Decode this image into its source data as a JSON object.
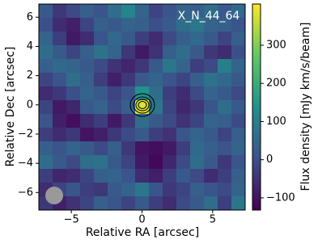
{
  "chart_data": {
    "type": "image",
    "title": "X_N_44_64",
    "xlabel": "Relative RA [arcsec]",
    "ylabel": "Relative Dec [arcsec]",
    "colorbar_label": "Flux density [mJy km/s/beam]",
    "colormap": "viridis",
    "xlim": [
      -7.3,
      7.3
    ],
    "ylim": [
      -7.2,
      6.9
    ],
    "xticks": [
      {
        "value": -5,
        "label": "−5"
      },
      0,
      5
    ],
    "yticks": [
      {
        "value": -6,
        "label": "−6"
      },
      {
        "value": -4,
        "label": "−4"
      },
      {
        "value": -2,
        "label": "−2"
      },
      0,
      2,
      4,
      6
    ],
    "clim": [
      -132,
      408
    ],
    "cticks": [
      {
        "value": -100,
        "label": "−100"
      },
      0,
      100,
      200,
      300
    ],
    "z": [
      [
        20,
        -40,
        -10,
        30,
        10,
        60,
        110,
        40,
        -20,
        10,
        40,
        30,
        60,
        20,
        50
      ],
      [
        0,
        -60,
        -80,
        -20,
        30,
        20,
        40,
        30,
        0,
        20,
        60,
        80,
        40,
        30,
        10
      ],
      [
        40,
        -30,
        -90,
        -60,
        10,
        50,
        20,
        -30,
        -60,
        -10,
        30,
        50,
        20,
        -20,
        30
      ],
      [
        60,
        20,
        -20,
        30,
        70,
        40,
        -40,
        -90,
        -50,
        30,
        60,
        20,
        -40,
        -60,
        0
      ],
      [
        30,
        50,
        40,
        20,
        -10,
        -50,
        -70,
        -40,
        20,
        80,
        40,
        -30,
        -10,
        100,
        40
      ],
      [
        -20,
        10,
        60,
        30,
        -30,
        -80,
        -40,
        20,
        40,
        10,
        -20,
        30,
        70,
        50,
        20
      ],
      [
        -60,
        -40,
        0,
        40,
        20,
        -20,
        10,
        140,
        60,
        -30,
        -60,
        -10,
        40,
        20,
        -10
      ],
      [
        -20,
        -90,
        -70,
        20,
        40,
        -10,
        30,
        380,
        80,
        -20,
        -70,
        -40,
        10,
        60,
        20
      ],
      [
        10,
        -80,
        -110,
        -60,
        -30,
        -90,
        -40,
        60,
        20,
        -10,
        -50,
        -20,
        40,
        30,
        -10
      ],
      [
        -30,
        -60,
        -40,
        -100,
        -80,
        -40,
        -10,
        20,
        -30,
        -50,
        10,
        40,
        20,
        -20,
        30
      ],
      [
        30,
        10,
        40,
        20,
        -10,
        30,
        -40,
        -100,
        -110,
        -90,
        -30,
        50,
        30,
        10,
        40
      ],
      [
        60,
        20,
        -10,
        60,
        70,
        20,
        -20,
        -90,
        -120,
        -70,
        -10,
        60,
        20,
        -40,
        10
      ],
      [
        -30,
        -70,
        -60,
        -20,
        30,
        40,
        10,
        -60,
        -80,
        -30,
        20,
        -10,
        -60,
        -30,
        30
      ],
      [
        -60,
        -20,
        10,
        -30,
        -40,
        20,
        40,
        80,
        10,
        -40,
        -20,
        30,
        10,
        -10,
        40
      ],
      [
        -40,
        -80,
        -50,
        -20,
        30,
        10,
        -20,
        20,
        -30,
        -60,
        -10,
        20,
        60,
        -30,
        80
      ]
    ]
  }
}
